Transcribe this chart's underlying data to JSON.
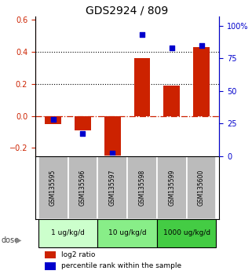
{
  "title": "GDS2924 / 809",
  "samples": [
    "GSM135595",
    "GSM135596",
    "GSM135597",
    "GSM135598",
    "GSM135599",
    "GSM135600"
  ],
  "log2_ratio": [
    -0.05,
    -0.09,
    -0.27,
    0.36,
    0.19,
    0.43
  ],
  "percentile_rank": [
    28,
    17,
    2,
    93,
    83,
    85
  ],
  "doses": [
    {
      "label": "1 ug/kg/d",
      "samples": [
        0,
        1
      ],
      "color": "#ccffcc"
    },
    {
      "label": "10 ug/kg/d",
      "samples": [
        2,
        3
      ],
      "color": "#88ee88"
    },
    {
      "label": "1000 ug/kg/d",
      "samples": [
        4,
        5
      ],
      "color": "#44cc44"
    }
  ],
  "bar_color": "#cc2200",
  "dot_color": "#0000cc",
  "left_ylim": [
    -0.25,
    0.62
  ],
  "right_ylim": [
    0,
    107
  ],
  "left_yticks": [
    -0.2,
    0.0,
    0.2,
    0.4,
    0.6
  ],
  "right_yticks": [
    0,
    25,
    50,
    75,
    100
  ],
  "right_yticklabels": [
    "0",
    "25",
    "50",
    "75",
    "100%"
  ],
  "hline_y": 0.0,
  "dotted_lines": [
    0.2,
    0.4
  ],
  "sample_box_color": "#bbbbbb",
  "legend_red_label": "log2 ratio",
  "legend_blue_label": "percentile rank within the sample"
}
